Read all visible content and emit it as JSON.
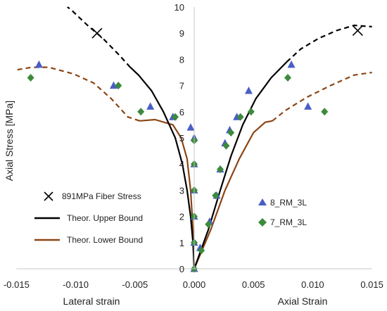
{
  "chart_data": {
    "type": "scatter",
    "title": "",
    "ylabel": "Axial Stress [MPa]",
    "xlabel_left": "Lateral strain",
    "xlabel_right": "Axial Strain",
    "xlim": [
      -0.015,
      0.015
    ],
    "ylim": [
      0,
      10
    ],
    "x_ticks": [
      -0.015,
      -0.01,
      -0.005,
      0.0,
      0.005,
      0.01,
      0.015
    ],
    "x_tick_labels": [
      "-0.015",
      "-0.010",
      "-0.005",
      "0.000",
      "0.005",
      "0.010",
      "0.015"
    ],
    "y_ticks": [
      0,
      1,
      2,
      3,
      4,
      5,
      6,
      7,
      8,
      9,
      10
    ],
    "y_tick_labels": [
      "0",
      "1",
      "2",
      "3",
      "4",
      "5",
      "6",
      "7",
      "8",
      "9",
      "10"
    ],
    "grid": false,
    "legend_left": [
      "891MPa Fiber Stress",
      "Theor. Upper Bound",
      "Theor. Lower Bound"
    ],
    "legend_right": [
      "8_RM_3L",
      "7_RM_3L"
    ],
    "colors": {
      "upper": "#000000",
      "lower": "#8B4513",
      "series_8": "#4A5EC4",
      "series_7": "#3C8A3C"
    },
    "fiber_stress_points": [
      {
        "x": -0.0082,
        "y": 9.0
      },
      {
        "x": 0.0138,
        "y": 9.1
      }
    ],
    "upper_bound": {
      "solid_lateral": [
        [
          0.0,
          0.0
        ],
        [
          -0.0001,
          1.0
        ],
        [
          -0.0003,
          2.0
        ],
        [
          -0.0006,
          3.0
        ],
        [
          -0.001,
          4.0
        ],
        [
          -0.0016,
          5.0
        ],
        [
          -0.0026,
          6.0
        ],
        [
          -0.0036,
          6.8
        ],
        [
          -0.0047,
          7.4
        ],
        [
          -0.0054,
          7.7
        ]
      ],
      "dashed_lateral": [
        [
          -0.0054,
          7.7
        ],
        [
          -0.0064,
          8.2
        ],
        [
          -0.0077,
          8.8
        ],
        [
          -0.009,
          9.3
        ],
        [
          -0.0104,
          9.9
        ],
        [
          -0.0107,
          10.0
        ]
      ],
      "solid_axial": [
        [
          0.0,
          0.0
        ],
        [
          0.0012,
          1.5
        ],
        [
          0.0022,
          3.0
        ],
        [
          0.0031,
          4.3
        ],
        [
          0.0041,
          5.5
        ],
        [
          0.0052,
          6.5
        ],
        [
          0.0065,
          7.3
        ],
        [
          0.0078,
          7.9
        ]
      ],
      "dashed_axial": [
        [
          0.0078,
          7.9
        ],
        [
          0.009,
          8.4
        ],
        [
          0.0105,
          8.8
        ],
        [
          0.012,
          9.1
        ],
        [
          0.0135,
          9.3
        ],
        [
          0.015,
          9.25
        ]
      ]
    },
    "lower_bound": {
      "solid_lateral": [
        [
          0.0,
          0.0
        ],
        [
          -0.0001,
          1.5
        ],
        [
          -0.0003,
          3.0
        ],
        [
          -0.0006,
          4.2
        ],
        [
          -0.0011,
          5.0
        ],
        [
          -0.0018,
          5.5
        ],
        [
          -0.0033,
          5.7
        ],
        [
          -0.0046,
          5.65
        ]
      ],
      "dashed_lateral": [
        [
          -0.0046,
          5.65
        ],
        [
          -0.0056,
          5.8
        ],
        [
          -0.007,
          6.5
        ],
        [
          -0.0085,
          7.1
        ],
        [
          -0.0102,
          7.45
        ],
        [
          -0.0123,
          7.7
        ],
        [
          -0.0137,
          7.7
        ],
        [
          -0.015,
          7.6
        ]
      ],
      "solid_axial": [
        [
          0.0,
          0.0
        ],
        [
          0.0014,
          1.5
        ],
        [
          0.0026,
          3.0
        ],
        [
          0.0038,
          4.2
        ],
        [
          0.005,
          5.2
        ],
        [
          0.006,
          5.6
        ],
        [
          0.0066,
          5.65
        ]
      ],
      "dashed_axial": [
        [
          0.0066,
          5.65
        ],
        [
          0.0077,
          6.05
        ],
        [
          0.0095,
          6.55
        ],
        [
          0.0115,
          7.0
        ],
        [
          0.0135,
          7.4
        ],
        [
          0.015,
          7.5
        ]
      ]
    },
    "series": [
      {
        "name": "8_RM_3L",
        "marker": "triangle",
        "points": [
          [
            0.0,
            0.0
          ],
          [
            0.0005,
            0.8
          ],
          [
            0.0013,
            1.8
          ],
          [
            0.0019,
            2.8
          ],
          [
            0.0022,
            3.8
          ],
          [
            0.0026,
            4.8
          ],
          [
            0.003,
            5.3
          ],
          [
            0.0036,
            5.8
          ],
          [
            0.0046,
            6.8
          ],
          [
            0.0082,
            7.8
          ],
          [
            0.0096,
            6.2
          ],
          [
            0.0,
            1.0
          ],
          [
            0.0,
            2.0
          ],
          [
            0.0,
            3.0
          ],
          [
            0.0,
            4.0
          ],
          [
            0.0,
            5.0
          ],
          [
            -0.0003,
            5.4
          ],
          [
            -0.0018,
            5.8
          ],
          [
            -0.0037,
            6.2
          ],
          [
            -0.0068,
            7.0
          ],
          [
            -0.0131,
            7.8
          ]
        ]
      },
      {
        "name": "7_RM_3L",
        "marker": "diamond",
        "points": [
          [
            0.0,
            0.0
          ],
          [
            0.0006,
            0.7
          ],
          [
            0.0012,
            1.7
          ],
          [
            0.0018,
            2.8
          ],
          [
            0.0022,
            3.8
          ],
          [
            0.0027,
            4.7
          ],
          [
            0.0031,
            5.2
          ],
          [
            0.0039,
            5.8
          ],
          [
            0.0048,
            6.0
          ],
          [
            0.0079,
            7.3
          ],
          [
            0.011,
            6.0
          ],
          [
            0.0,
            1.0
          ],
          [
            0.0,
            2.0
          ],
          [
            0.0,
            3.0
          ],
          [
            0.0,
            4.0
          ],
          [
            0.0,
            4.9
          ],
          [
            -0.0016,
            5.8
          ],
          [
            -0.0045,
            6.0
          ],
          [
            -0.0064,
            7.0
          ],
          [
            -0.0138,
            7.3
          ]
        ]
      }
    ]
  }
}
